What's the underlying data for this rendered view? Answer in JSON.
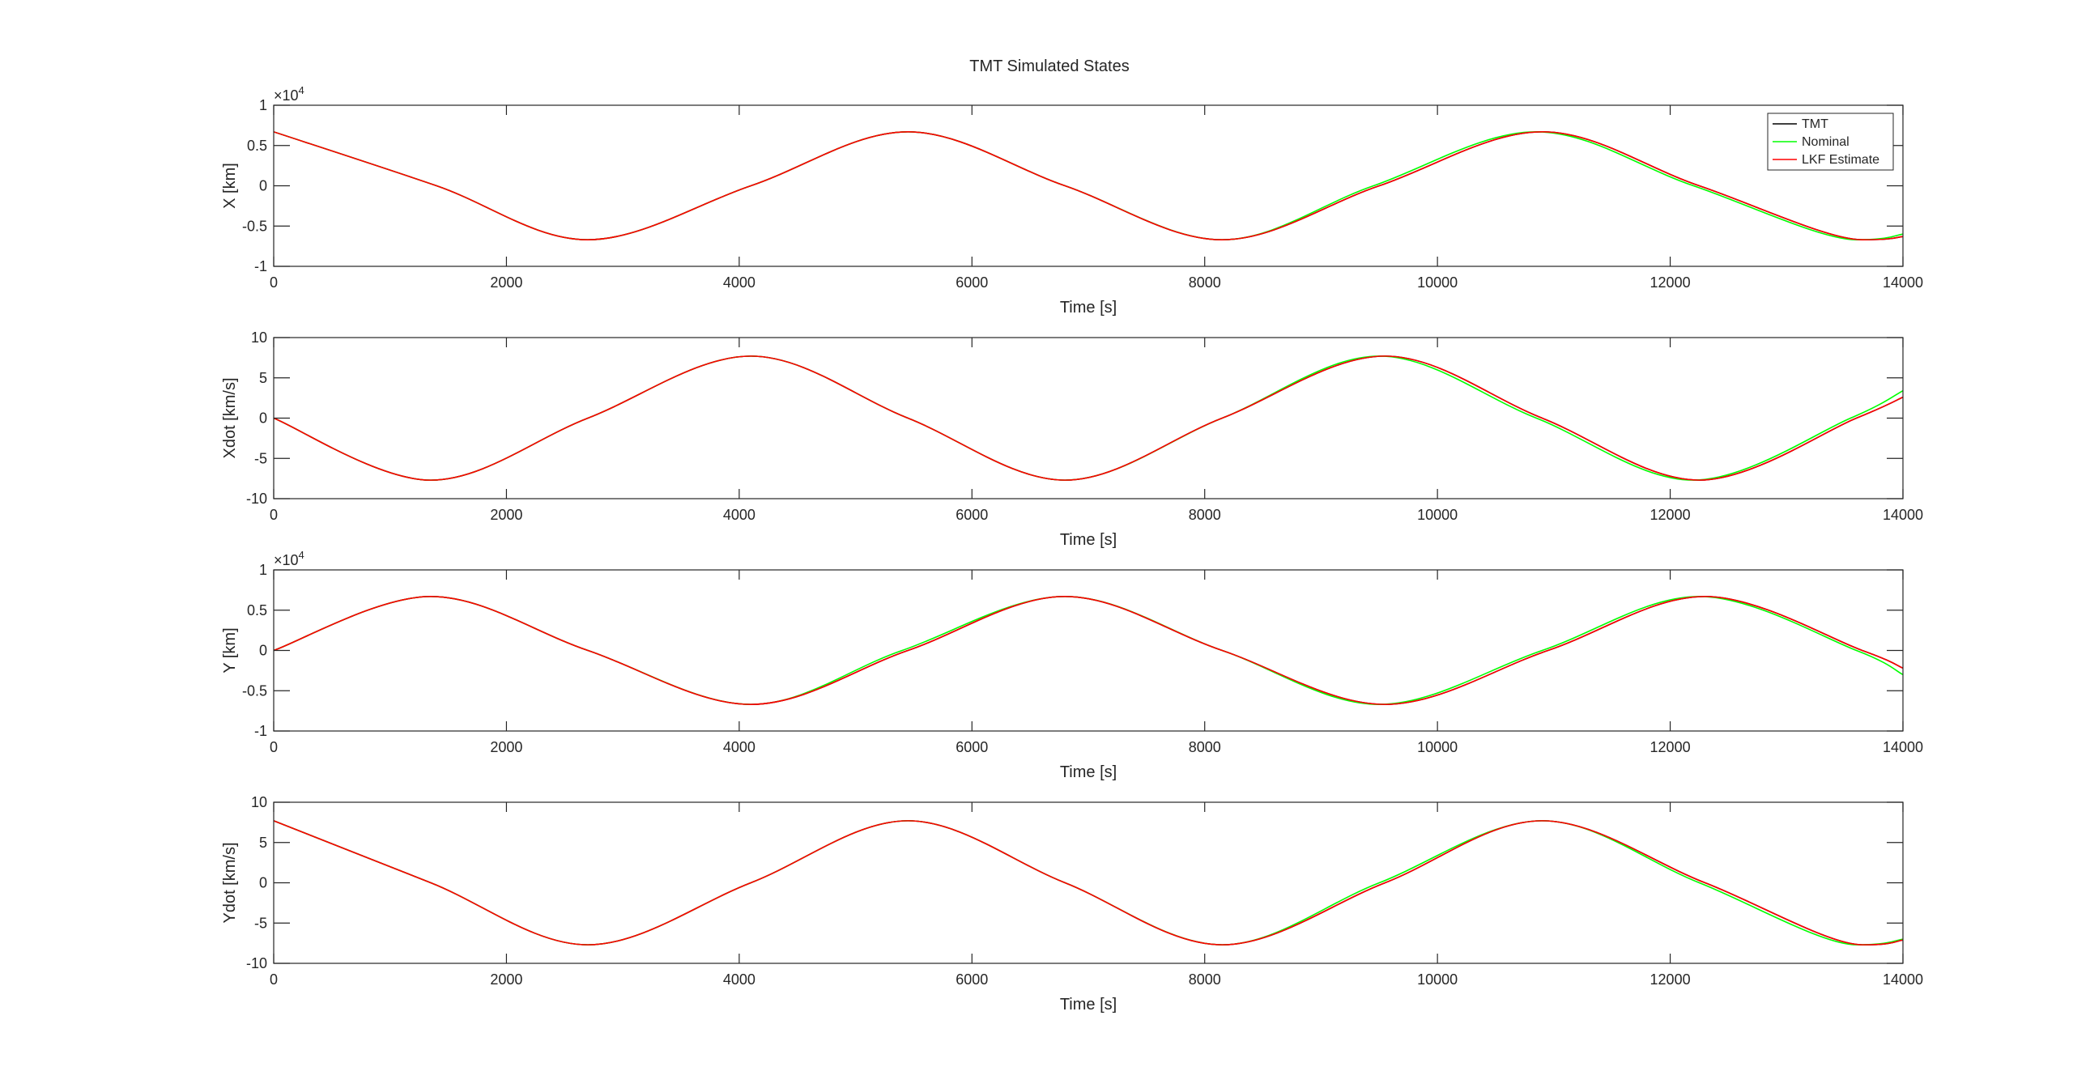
{
  "figure_title": "TMT Simulated States",
  "legend": [
    {
      "label": "TMT",
      "color": "#000000"
    },
    {
      "label": "Nominal",
      "color": "#00ff00"
    },
    {
      "label": "LKF Estimate",
      "color": "#ff0000"
    }
  ],
  "colors": {
    "tmt": "#000000",
    "nominal": "#00ff00",
    "lkf": "#ff0000",
    "axes": "#262626"
  },
  "chart_data": [
    {
      "type": "line",
      "title": "",
      "xlabel": "Time [s]",
      "ylabel": "X [km]",
      "xlim": [
        0,
        14000
      ],
      "ylim": [
        -1,
        1
      ],
      "exponent": "4",
      "xticks": [
        0,
        2000,
        4000,
        6000,
        8000,
        10000,
        12000,
        14000
      ],
      "yticks": [
        -1,
        -0.5,
        0,
        0.5,
        1
      ],
      "xtick_labels": [
        "0",
        "2000",
        "4000",
        "6000",
        "8000",
        "10000",
        "12000",
        "14000"
      ],
      "ytick_labels": [
        "-1",
        "-0.5",
        "0",
        "0.5",
        "1"
      ],
      "legend_position": "top-right",
      "series": [
        {
          "name": "TMT",
          "x": [
            0,
            1400,
            2700,
            4100,
            5450,
            6800,
            8150,
            9500,
            10900,
            12250,
            13650,
            14000
          ],
          "y": [
            0.67,
            0.0,
            -0.67,
            0.0,
            0.67,
            0.0,
            -0.67,
            0.0,
            0.67,
            0.0,
            -0.67,
            -0.63
          ]
        },
        {
          "name": "Nominal",
          "x": [
            0,
            1400,
            2700,
            4100,
            5450,
            6800,
            8150,
            9450,
            10850,
            12200,
            13600,
            14000
          ],
          "y": [
            0.67,
            0.0,
            -0.67,
            0.0,
            0.67,
            0.0,
            -0.67,
            0.0,
            0.67,
            0.0,
            -0.67,
            -0.6
          ]
        },
        {
          "name": "LKF Estimate",
          "x": [
            0,
            1400,
            2700,
            4100,
            5450,
            6800,
            8150,
            9500,
            10900,
            12250,
            13650,
            14000
          ],
          "y": [
            0.67,
            0.0,
            -0.67,
            0.0,
            0.67,
            0.0,
            -0.67,
            0.0,
            0.67,
            0.0,
            -0.67,
            -0.63
          ]
        }
      ]
    },
    {
      "type": "line",
      "title": "",
      "xlabel": "Time [s]",
      "ylabel": "Xdot [km/s]",
      "xlim": [
        0,
        14000
      ],
      "ylim": [
        -10,
        10
      ],
      "exponent": "",
      "xticks": [
        0,
        2000,
        4000,
        6000,
        8000,
        10000,
        12000,
        14000
      ],
      "yticks": [
        -10,
        -5,
        0,
        5,
        10
      ],
      "xtick_labels": [
        "0",
        "2000",
        "4000",
        "6000",
        "8000",
        "10000",
        "12000",
        "14000"
      ],
      "ytick_labels": [
        "-10",
        "-5",
        "0",
        "5",
        "10"
      ],
      "series": [
        {
          "name": "TMT",
          "x": [
            0,
            1350,
            2700,
            4100,
            5450,
            6800,
            8150,
            9550,
            10900,
            12250,
            13600,
            14000
          ],
          "y": [
            0.0,
            -7.7,
            0.0,
            7.7,
            0.0,
            -7.7,
            0.0,
            7.7,
            0.0,
            -7.7,
            0.0,
            2.6
          ]
        },
        {
          "name": "Nominal",
          "x": [
            0,
            1350,
            2700,
            4100,
            5450,
            6800,
            8150,
            9500,
            10850,
            12200,
            13550,
            14000
          ],
          "y": [
            0.0,
            -7.7,
            0.0,
            7.7,
            0.0,
            -7.7,
            0.0,
            7.7,
            0.0,
            -7.7,
            0.0,
            3.4
          ]
        },
        {
          "name": "LKF Estimate",
          "x": [
            0,
            1350,
            2700,
            4100,
            5450,
            6800,
            8150,
            9550,
            10900,
            12250,
            13600,
            14000
          ],
          "y": [
            0.0,
            -7.7,
            0.0,
            7.7,
            0.0,
            -7.7,
            0.0,
            7.7,
            0.0,
            -7.7,
            0.0,
            2.6
          ]
        }
      ]
    },
    {
      "type": "line",
      "title": "",
      "xlabel": "Time [s]",
      "ylabel": "Y [km]",
      "xlim": [
        0,
        14000
      ],
      "ylim": [
        -1,
        1
      ],
      "exponent": "4",
      "xticks": [
        0,
        2000,
        4000,
        6000,
        8000,
        10000,
        12000,
        14000
      ],
      "yticks": [
        -1,
        -0.5,
        0,
        0.5,
        1
      ],
      "xtick_labels": [
        "0",
        "2000",
        "4000",
        "6000",
        "8000",
        "10000",
        "12000",
        "14000"
      ],
      "ytick_labels": [
        "-1",
        "-0.5",
        "0",
        "0.5",
        "1"
      ],
      "series": [
        {
          "name": "TMT",
          "x": [
            0,
            1350,
            2700,
            4100,
            5450,
            6800,
            8150,
            9550,
            10950,
            12300,
            13650,
            14000
          ],
          "y": [
            0.0,
            0.67,
            0.0,
            -0.67,
            0.0,
            0.67,
            0.0,
            -0.67,
            0.0,
            0.67,
            0.0,
            -0.22
          ]
        },
        {
          "name": "Nominal",
          "x": [
            0,
            1350,
            2700,
            4100,
            5400,
            6800,
            8150,
            9500,
            10900,
            12250,
            13600,
            14000
          ],
          "y": [
            0.0,
            0.67,
            0.0,
            -0.67,
            0.0,
            0.67,
            0.0,
            -0.67,
            0.0,
            0.67,
            0.0,
            -0.3
          ]
        },
        {
          "name": "LKF Estimate",
          "x": [
            0,
            1350,
            2700,
            4100,
            5450,
            6800,
            8150,
            9550,
            10950,
            12300,
            13650,
            14000
          ],
          "y": [
            0.0,
            0.67,
            0.0,
            -0.67,
            0.0,
            0.67,
            0.0,
            -0.67,
            0.0,
            0.67,
            0.0,
            -0.22
          ]
        }
      ]
    },
    {
      "type": "line",
      "title": "",
      "xlabel": "Time [s]",
      "ylabel": "Ydot [km/s]",
      "xlim": [
        0,
        14000
      ],
      "ylim": [
        -10,
        10
      ],
      "exponent": "",
      "xticks": [
        0,
        2000,
        4000,
        6000,
        8000,
        10000,
        12000,
        14000
      ],
      "yticks": [
        -10,
        -5,
        0,
        5,
        10
      ],
      "xtick_labels": [
        "0",
        "2000",
        "4000",
        "6000",
        "8000",
        "10000",
        "12000",
        "14000"
      ],
      "ytick_labels": [
        "-10",
        "-5",
        "0",
        "5",
        "10"
      ],
      "series": [
        {
          "name": "TMT",
          "x": [
            0,
            1350,
            2700,
            4100,
            5450,
            6800,
            8150,
            9550,
            10900,
            12300,
            13650,
            14000
          ],
          "y": [
            7.7,
            0.0,
            -7.7,
            0.0,
            7.7,
            0.0,
            -7.7,
            0.0,
            7.7,
            0.0,
            -7.7,
            -7.1
          ]
        },
        {
          "name": "Nominal",
          "x": [
            0,
            1350,
            2700,
            4100,
            5450,
            6800,
            8150,
            9500,
            10900,
            12250,
            13600,
            14000
          ],
          "y": [
            7.7,
            0.0,
            -7.7,
            0.0,
            7.7,
            0.0,
            -7.7,
            0.0,
            7.7,
            0.0,
            -7.7,
            -7.0
          ]
        },
        {
          "name": "LKF Estimate",
          "x": [
            0,
            1350,
            2700,
            4100,
            5450,
            6800,
            8150,
            9550,
            10900,
            12300,
            13650,
            14000
          ],
          "y": [
            7.7,
            0.0,
            -7.7,
            0.0,
            7.7,
            0.0,
            -7.7,
            0.0,
            7.7,
            0.0,
            -7.7,
            -7.1
          ]
        }
      ]
    }
  ]
}
